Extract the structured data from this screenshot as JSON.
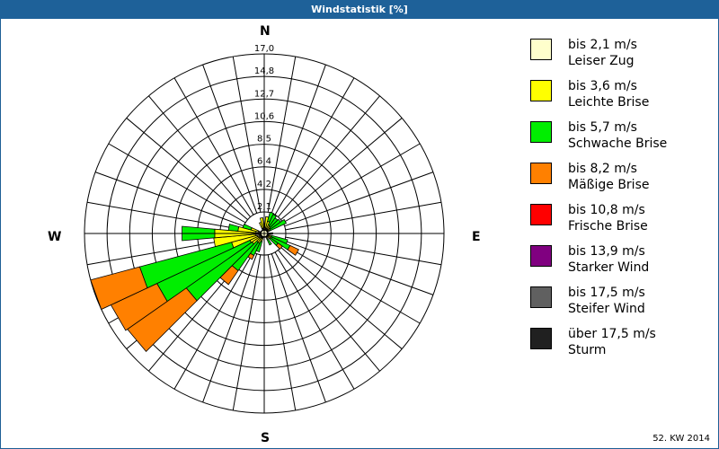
{
  "header": {
    "title": "Windstatistik [%]"
  },
  "compass": {
    "n": "N",
    "e": "E",
    "s": "S",
    "w": "W"
  },
  "footer": {
    "period": "52. KW 2014"
  },
  "legend": [
    {
      "range": "bis 2,1 m/s",
      "name": "Leiser Zug",
      "color": "#ffffcc"
    },
    {
      "range": "bis 3,6 m/s",
      "name": "Leichte Brise",
      "color": "#ffff00"
    },
    {
      "range": "bis 5,7 m/s",
      "name": "Schwache Brise",
      "color": "#00ee00"
    },
    {
      "range": "bis 8,2 m/s",
      "name": "Mäßige Brise",
      "color": "#ff8000"
    },
    {
      "range": "bis 10,8 m/s",
      "name": "Frische Brise",
      "color": "#ff0000"
    },
    {
      "range": "bis 13,9 m/s",
      "name": "Starker Wind",
      "color": "#800080"
    },
    {
      "range": "bis 17,5 m/s",
      "name": "Steifer Wind",
      "color": "#606060"
    },
    {
      "range": "über 17,5 m/s",
      "name": "Sturm",
      "color": "#202020"
    }
  ],
  "chart_data": {
    "type": "wind-rose",
    "title": "Windstatistik [%]",
    "subtitle": "52. KW 2014",
    "radial_ticks": [
      "2,1",
      "4,2",
      "6,4",
      "8,5",
      "10,6",
      "12,7",
      "14,8",
      "17,0"
    ],
    "radial_max": 17.0,
    "sector_width_deg": 10,
    "series_names": [
      "Leiser Zug",
      "Leichte Brise",
      "Schwache Brise",
      "Mäßige Brise",
      "Frische Brise",
      "Starker Wind",
      "Steifer Wind",
      "Sturm"
    ],
    "sectors": [
      {
        "dir": 10,
        "cumulative": [
          0.6,
          1.6,
          1.6,
          1.6
        ]
      },
      {
        "dir": 20,
        "cumulative": [
          0.5,
          1.2,
          2.1,
          2.1
        ]
      },
      {
        "dir": 30,
        "cumulative": [
          0.5,
          0.9,
          2.0,
          2.0
        ]
      },
      {
        "dir": 40,
        "cumulative": [
          0.5,
          0.8,
          1.8,
          1.8
        ]
      },
      {
        "dir": 50,
        "cumulative": [
          0.4,
          0.7,
          1.9,
          1.9
        ]
      },
      {
        "dir": 60,
        "cumulative": [
          0.4,
          0.6,
          2.3,
          2.3
        ]
      },
      {
        "dir": 90,
        "cumulative": [
          0.5,
          0.8,
          0.8,
          0.8
        ]
      },
      {
        "dir": 110,
        "cumulative": [
          0.4,
          0.7,
          2.3,
          2.3
        ]
      },
      {
        "dir": 120,
        "cumulative": [
          0.4,
          0.8,
          2.7,
          3.6
        ]
      },
      {
        "dir": 130,
        "cumulative": [
          0.4,
          0.7,
          1.6,
          2.1
        ]
      },
      {
        "dir": 150,
        "cumulative": [
          0.4,
          0.6,
          1.2,
          1.2
        ]
      },
      {
        "dir": 200,
        "cumulative": [
          0.4,
          0.8,
          1.8,
          1.8
        ]
      },
      {
        "dir": 210,
        "cumulative": [
          0.5,
          1.0,
          2.3,
          2.7
        ]
      },
      {
        "dir": 220,
        "cumulative": [
          0.5,
          1.0,
          4.3,
          5.9
        ]
      },
      {
        "dir": 230,
        "cumulative": [
          0.6,
          1.4,
          9.0,
          15.8
        ]
      },
      {
        "dir": 240,
        "cumulative": [
          0.6,
          1.5,
          11.2,
          16.0
        ]
      },
      {
        "dir": 250,
        "cumulative": [
          0.7,
          3.2,
          12.2,
          17.0
        ]
      },
      {
        "dir": 260,
        "cumulative": [
          0.8,
          4.8,
          4.8,
          4.8
        ]
      },
      {
        "dir": 270,
        "cumulative": [
          1.0,
          4.7,
          7.8,
          7.8
        ]
      },
      {
        "dir": 280,
        "cumulative": [
          0.8,
          2.5,
          3.4,
          3.4
        ]
      },
      {
        "dir": 290,
        "cumulative": [
          0.6,
          1.3,
          2.1,
          2.1
        ]
      },
      {
        "dir": 340,
        "cumulative": [
          0.5,
          1.1,
          1.1,
          1.1
        ]
      },
      {
        "dir": 350,
        "cumulative": [
          0.5,
          1.5,
          1.5,
          1.5
        ]
      }
    ]
  }
}
